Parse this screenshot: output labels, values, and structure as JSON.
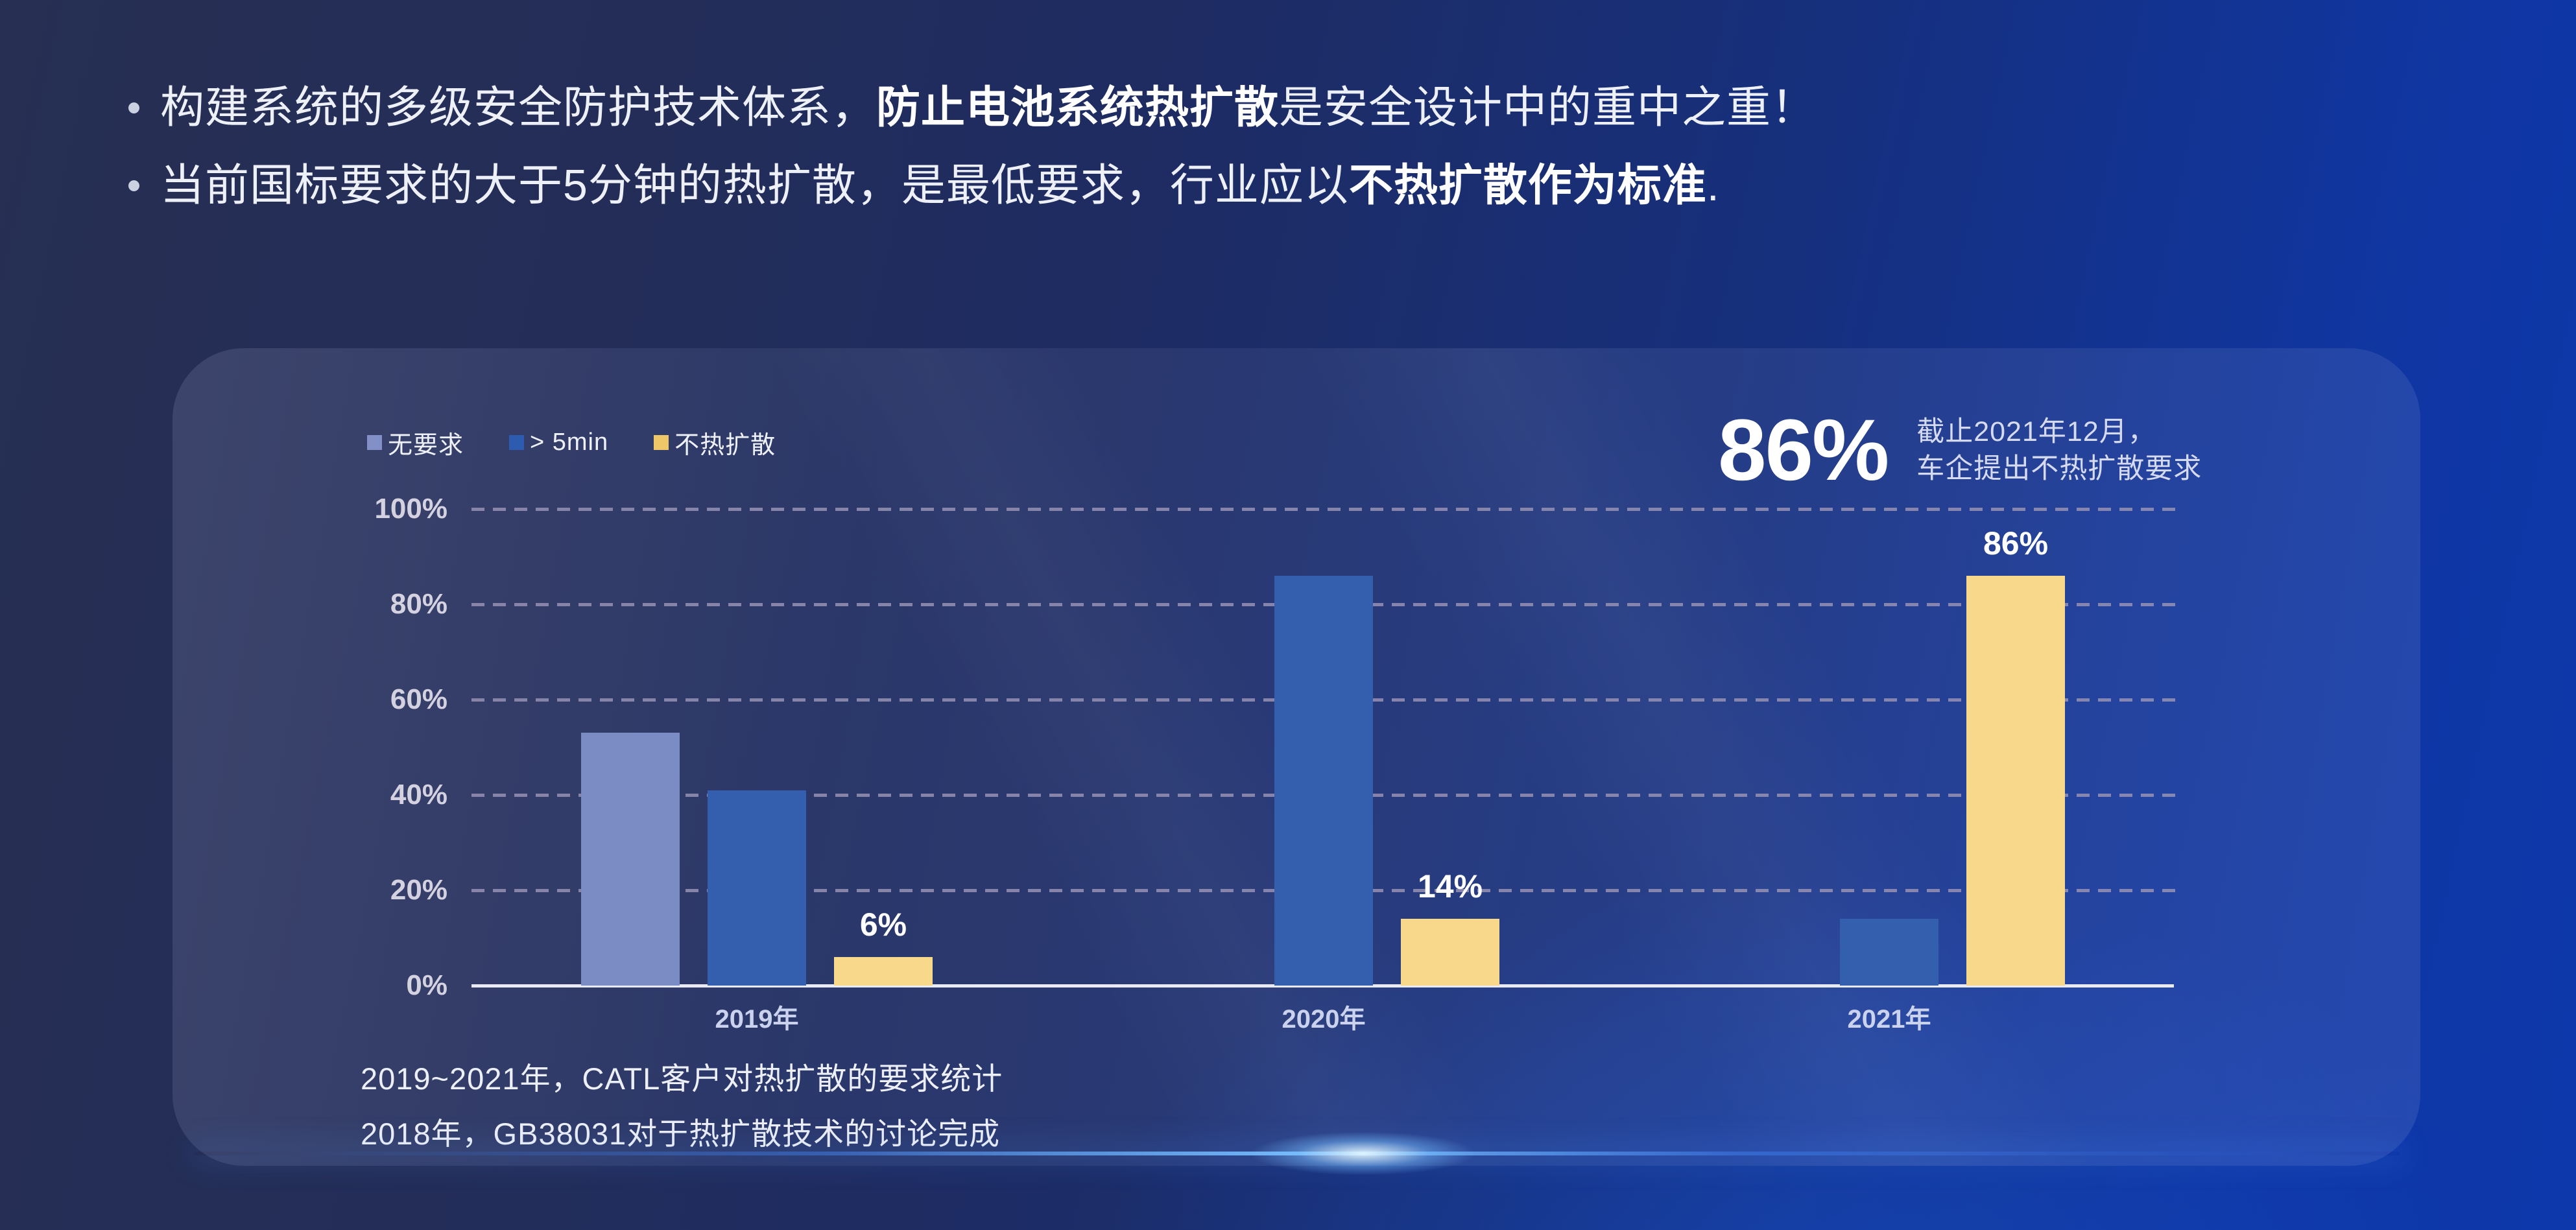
{
  "bullets": [
    {
      "pre": "构建系统的多级安全防护技术体系，",
      "bold": "防止电池系统热扩散",
      "post": "是安全设计中的重中之重！"
    },
    {
      "pre": "当前国标要求的大于5分钟的热扩散，是最低要求，行业应以",
      "bold": "不热扩散作为标准",
      "post": "."
    }
  ],
  "panel": {
    "legend": [
      {
        "label": "无要求",
        "color": "#8290c7"
      },
      {
        "label": "> 5min",
        "color": "#2d5bb0"
      },
      {
        "label": "不热扩散",
        "color": "#efc768"
      }
    ],
    "callout": {
      "value": "86%",
      "line1": "截止2021年12月，",
      "line2": "车企提出不热扩散要求"
    },
    "captions": [
      "2019~2021年，CATL客户对热扩散的要求统计",
      "2018年，GB38031对于热扩散技术的讨论完成"
    ]
  },
  "chart_data": {
    "type": "bar",
    "title": "CATL客户对热扩散的要求统计 2019-2021",
    "categories": [
      "2019年",
      "2020年",
      "2021年"
    ],
    "series": [
      {
        "name": "无要求",
        "color": "#7b8cc5",
        "values": [
          53,
          0,
          0
        ]
      },
      {
        "name": "> 5min",
        "color": "#345fae",
        "values": [
          41,
          86,
          14
        ]
      },
      {
        "name": "不热扩散",
        "color": "#f8d88b",
        "values": [
          6,
          14,
          86
        ],
        "point_labels": [
          "6%",
          "14%",
          "86%"
        ]
      }
    ],
    "xlabel": "",
    "ylabel": "",
    "ylim": [
      0,
      100
    ],
    "y_ticks": [
      "100%",
      "80%",
      "60%",
      "40%",
      "20%",
      "0%"
    ],
    "grid": "dashed-horizontal",
    "legend_position": "top-left",
    "colors": {
      "gridline": "#8f8aab",
      "axis": "#e9eaf3",
      "value_label": "#ffffff"
    }
  }
}
